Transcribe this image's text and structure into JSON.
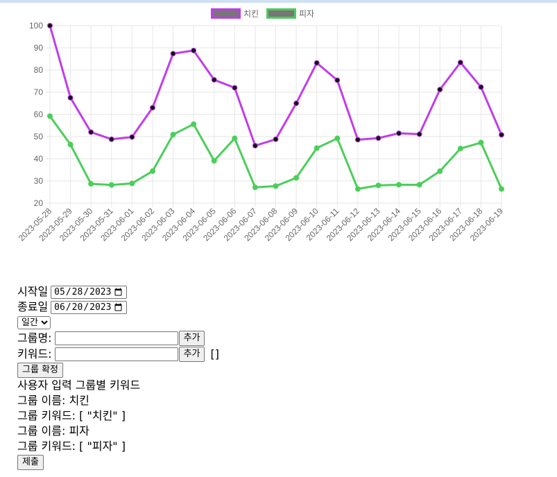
{
  "chart_data": {
    "type": "line",
    "legend_position": "top-center",
    "grid": true,
    "ylim": [
      20,
      100
    ],
    "y_ticks": [
      "100",
      "90",
      "80",
      "70",
      "60",
      "50",
      "40",
      "30",
      "20"
    ],
    "categories": [
      "2023-05-28",
      "2023-05-29",
      "2023-05-30",
      "2023-05-31",
      "2023-06-01",
      "2023-06-02",
      "2023-06-03",
      "2023-06-04",
      "2023-06-05",
      "2023-06-06",
      "2023-06-07",
      "2023-06-08",
      "2023-06-09",
      "2023-06-10",
      "2023-06-11",
      "2023-06-12",
      "2023-06-13",
      "2023-06-14",
      "2023-06-15",
      "2023-06-16",
      "2023-06-17",
      "2023-06-18",
      "2023-06-19"
    ],
    "series": [
      {
        "name": "치킨",
        "color": "#c03ceb",
        "point_color": "#111111",
        "values": [
          100,
          67.5,
          52,
          48.8,
          49.8,
          63,
          87.4,
          88.8,
          75.6,
          72,
          45.9,
          48.8,
          65,
          83.2,
          75.4,
          48.6,
          49.3,
          51.5,
          51.1,
          71.2,
          83.4,
          72.3,
          50.8
        ]
      },
      {
        "name": "피자",
        "color": "#4bce5a",
        "point_color": "#4bce5a",
        "values": [
          59.2,
          46.4,
          28.7,
          28.2,
          28.9,
          34.4,
          50.9,
          55.6,
          39.1,
          49.2,
          27.1,
          27.7,
          31.4,
          44.8,
          49.2,
          26.4,
          28.0,
          28.3,
          28.3,
          34.4,
          44.6,
          47.3,
          26.4
        ]
      }
    ]
  },
  "form": {
    "start_label": "시작일",
    "start_value": "2023-05-28",
    "end_label": "종료일",
    "end_value": "2023-06-20",
    "period_selected": "일간",
    "group_name_label": "그룹명:",
    "group_name_value": "",
    "add_label": "추가",
    "keyword_label": "키워드:",
    "keyword_value": "",
    "keyword_list": "[]",
    "confirm_label": "그룹 확정",
    "section_title": "사용자 입력 그룹별 키워드",
    "groups": [
      {
        "name_line": "그룹 이름: 치킨",
        "keywords_line": "그룹 키워드: [ \"치킨\" ]"
      },
      {
        "name_line": "그룹 이름: 피자",
        "keywords_line": "그룹 키워드: [ \"피자\" ]"
      }
    ],
    "submit_label": "제출"
  }
}
